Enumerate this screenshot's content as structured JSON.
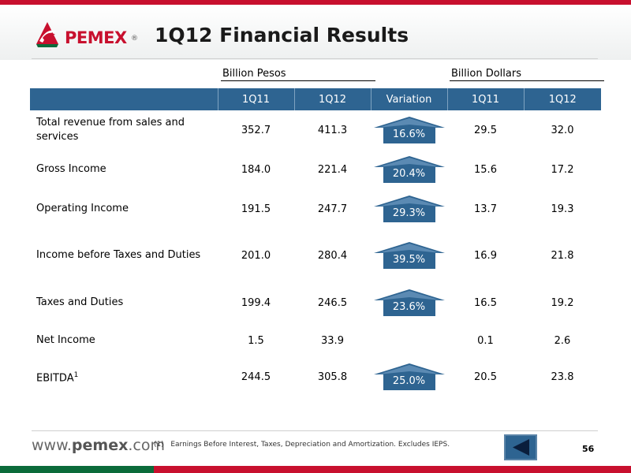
{
  "header": {
    "logo_text": "PEMEX",
    "logo_reg": "®",
    "title": "1Q12 Financial Results"
  },
  "groups": {
    "pesos": "Billion Pesos",
    "dollars": "Billion Dollars"
  },
  "table": {
    "columns": [
      "",
      "1Q11",
      "1Q12",
      "Variation",
      "1Q11",
      "1Q12"
    ],
    "rows": [
      {
        "label": "Total revenue from sales and services",
        "p11": "352.7",
        "p12": "411.3",
        "variation": "16.6%",
        "d11": "29.5",
        "d12": "32.0"
      },
      {
        "label": "Gross Income",
        "p11": "184.0",
        "p12": "221.4",
        "variation": "20.4%",
        "d11": "15.6",
        "d12": "17.2"
      },
      {
        "label": "Operating Income",
        "p11": "191.5",
        "p12": "247.7",
        "variation": "29.3%",
        "d11": "13.7",
        "d12": "19.3"
      },
      {
        "label": "Income before Taxes and Duties",
        "p11": "201.0",
        "p12": "280.4",
        "variation": "39.5%",
        "d11": "16.9",
        "d12": "21.8"
      },
      {
        "label": "Taxes and Duties",
        "p11": "199.4",
        "p12": "246.5",
        "variation": "23.6%",
        "d11": "16.5",
        "d12": "19.2"
      },
      {
        "label": "Net Income",
        "p11": "1.5",
        "p12": "33.9",
        "variation": "",
        "d11": "0.1",
        "d12": "2.6"
      },
      {
        "label": "EBITDA",
        "label_sup": "1",
        "p11": "244.5",
        "p12": "305.8",
        "variation": "25.0%",
        "d11": "20.5",
        "d12": "23.8"
      }
    ]
  },
  "footer": {
    "site_prefix": "www.",
    "site_main": "pemex",
    "site_suffix": ".com",
    "footnote_marker": "(1)",
    "footnote": "Earnings Before Interest, Taxes, Depreciation and Amortization. Excludes IEPS.",
    "page_number": "56"
  },
  "colors": {
    "brand_red": "#c8102e",
    "header_blue": "#2e6491",
    "brand_green": "#0b6b3a"
  },
  "icons": {
    "logo": "pemex-eagle-logo",
    "badge": "up-arrow-badge",
    "nav": "back-arrow-icon"
  }
}
